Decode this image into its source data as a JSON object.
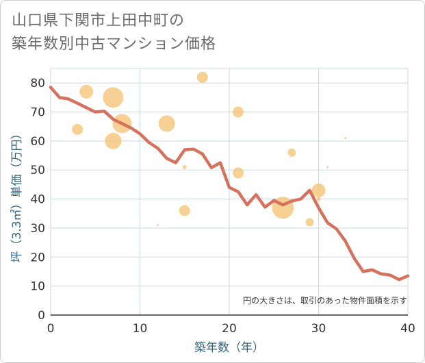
{
  "title_line1": "山口県下関市上田中町の",
  "title_line2": "築年数別中古マンション価格",
  "colors": {
    "line": "#d4725e",
    "bubble": "#f5c578",
    "grid": "#c8d8e6",
    "axis": "#333333",
    "label": "#336680",
    "title": "#6b6b6b"
  },
  "chart_data": {
    "type": "scatter",
    "title": "山口県下関市上田中町の築年数別中古マンション価格",
    "xlabel": "築年数（年）",
    "ylabel": "坪（3.3㎡）単価（万円）",
    "xlim": [
      0,
      40
    ],
    "ylim": [
      0,
      85
    ],
    "xticks": [
      0,
      10,
      20,
      30,
      40
    ],
    "yticks": [
      0,
      10,
      20,
      30,
      40,
      50,
      60,
      70,
      80
    ],
    "note": "円の大きさは、取引のあった物件面積を示す",
    "bubbles": [
      {
        "x": 3,
        "y": 64,
        "r": 8
      },
      {
        "x": 4,
        "y": 77,
        "r": 10
      },
      {
        "x": 7,
        "y": 75,
        "r": 15
      },
      {
        "x": 7,
        "y": 60,
        "r": 12
      },
      {
        "x": 8,
        "y": 66,
        "r": 14
      },
      {
        "x": 12,
        "y": 31,
        "r": 1.5
      },
      {
        "x": 13,
        "y": 66,
        "r": 12
      },
      {
        "x": 15,
        "y": 51,
        "r": 3
      },
      {
        "x": 15,
        "y": 36,
        "r": 8
      },
      {
        "x": 17,
        "y": 82,
        "r": 8
      },
      {
        "x": 21,
        "y": 70,
        "r": 8
      },
      {
        "x": 21,
        "y": 49,
        "r": 8
      },
      {
        "x": 26,
        "y": 37,
        "r": 16
      },
      {
        "x": 27,
        "y": 56,
        "r": 6
      },
      {
        "x": 29,
        "y": 32,
        "r": 6
      },
      {
        "x": 30,
        "y": 43,
        "r": 10
      },
      {
        "x": 30,
        "y": 40,
        "r": 3
      },
      {
        "x": 31,
        "y": 51,
        "r": 1.5
      },
      {
        "x": 33,
        "y": 61,
        "r": 1.5
      }
    ],
    "series": [
      {
        "name": "平均",
        "x": [
          0,
          1,
          2,
          3,
          4,
          5,
          6,
          7,
          8,
          9,
          10,
          11,
          12,
          13,
          14,
          15,
          16,
          17,
          18,
          19,
          20,
          21,
          22,
          23,
          24,
          25,
          26,
          27,
          28,
          29,
          30,
          31,
          32,
          33,
          34,
          35,
          36,
          37,
          38,
          39,
          40
        ],
        "values": [
          78.5,
          75,
          74.5,
          73,
          71.5,
          70,
          70.3,
          67.5,
          66,
          64.5,
          62.5,
          59.5,
          57.5,
          54,
          52.5,
          57,
          57.2,
          55.5,
          50.8,
          52.5,
          44,
          42.5,
          38,
          41.5,
          37.2,
          39.5,
          38,
          39.3,
          40,
          43,
          37,
          31.8,
          29.7,
          25.5,
          19.5,
          15,
          15.6,
          14.2,
          13.8,
          12.2,
          13.5
        ]
      }
    ]
  }
}
